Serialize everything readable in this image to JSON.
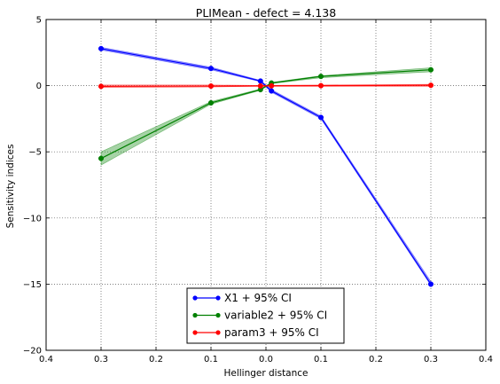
{
  "chart_data": {
    "type": "line",
    "title": "PLIMean - defect = 4.138",
    "xlabel": "Hellinger distance",
    "ylabel": "Sensitivity indices",
    "xlim": [
      -0.4,
      0.4
    ],
    "ylim": [
      -20,
      5
    ],
    "x_ticks": [
      -0.4,
      -0.3,
      -0.2,
      -0.1,
      0.0,
      0.1,
      0.2,
      0.3,
      0.4
    ],
    "x_tick_labels": [
      "0.4",
      "0.3",
      "0.2",
      "0.1",
      "0.0",
      "0.1",
      "0.2",
      "0.3",
      "0.4"
    ],
    "y_ticks": [
      -20,
      -15,
      -10,
      -5,
      0,
      5
    ],
    "y_tick_labels": [
      "−20",
      "−15",
      "−10",
      "−5",
      "0",
      "5"
    ],
    "grid": true,
    "legend_position": "lower center",
    "series": [
      {
        "name": "X1 + 95% CI",
        "color": "#0000ff",
        "x": [
          -0.3,
          -0.1,
          -0.01,
          0.01,
          0.1,
          0.3
        ],
        "y": [
          2.8,
          1.3,
          0.35,
          -0.4,
          -2.4,
          -15.0
        ],
        "ci_low": [
          2.7,
          1.2,
          0.3,
          -0.5,
          -2.5,
          -15.1
        ],
        "ci_high": [
          2.9,
          1.4,
          0.4,
          -0.3,
          -2.3,
          -14.8
        ]
      },
      {
        "name": "variable2 + 95% CI",
        "color": "#008000",
        "x": [
          -0.3,
          -0.1,
          -0.01,
          0.01,
          0.1,
          0.3
        ],
        "y": [
          -5.5,
          -1.3,
          -0.3,
          0.2,
          0.7,
          1.2
        ],
        "ci_low": [
          -6.0,
          -1.4,
          -0.35,
          0.15,
          0.6,
          1.05
        ],
        "ci_high": [
          -5.0,
          -1.2,
          -0.25,
          0.25,
          0.75,
          1.35
        ]
      },
      {
        "name": "param3 + 95% CI",
        "color": "#ff0000",
        "x": [
          -0.3,
          -0.1,
          -0.01,
          0.01,
          0.1,
          0.3
        ],
        "y": [
          -0.05,
          -0.03,
          -0.02,
          -0.01,
          0.0,
          0.03
        ],
        "ci_low": [
          -0.15,
          -0.1,
          -0.05,
          -0.05,
          -0.05,
          -0.05
        ],
        "ci_high": [
          0.05,
          0.05,
          0.02,
          0.03,
          0.05,
          0.1
        ]
      }
    ]
  }
}
